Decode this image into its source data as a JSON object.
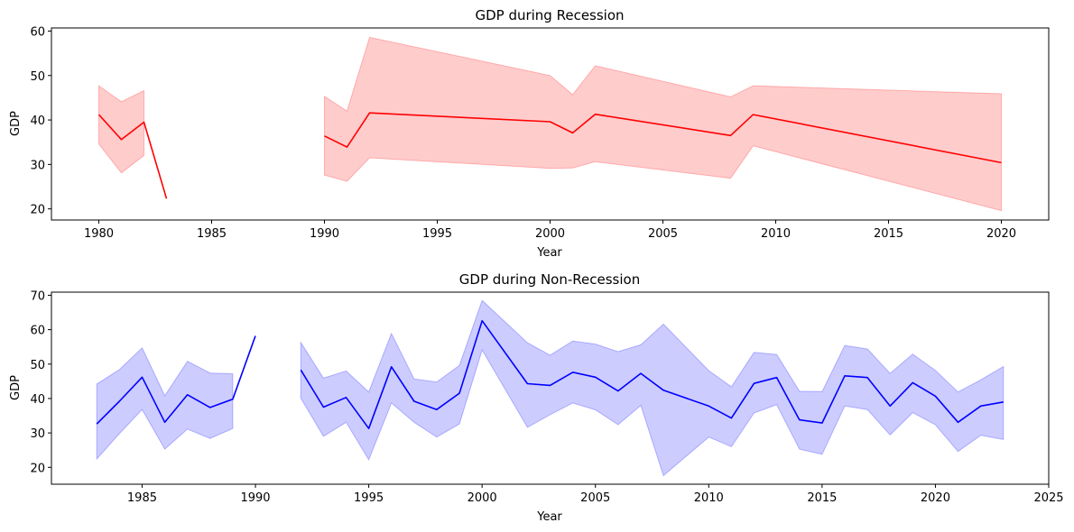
{
  "chart_data": [
    {
      "type": "line",
      "title": "GDP during Recession",
      "xlabel": "Year",
      "ylabel": "GDP",
      "xlim": [
        1977.9,
        2022.1
      ],
      "ylim": [
        17.5,
        60.7
      ],
      "xticks": [
        1980,
        1985,
        1990,
        1995,
        2000,
        2005,
        2010,
        2015,
        2020
      ],
      "yticks": [
        20,
        30,
        40,
        50,
        60
      ],
      "grid": false,
      "colors": {
        "line": "#ff0000",
        "band": "#ff0000",
        "band_opacity": 0.2
      },
      "segments": [
        [
          {
            "x": 1980,
            "y": 41.2,
            "lo": 34.6,
            "hi": 47.7
          },
          {
            "x": 1981,
            "y": 35.6,
            "lo": 28.1,
            "hi": 44.1
          },
          {
            "x": 1982,
            "y": 39.5,
            "lo": 32.0,
            "hi": 46.6
          },
          {
            "x": 1983,
            "y": 22.3,
            "lo": null,
            "hi": null
          }
        ],
        [
          {
            "x": 1990,
            "y": 36.4,
            "lo": 27.6,
            "hi": 45.3
          },
          {
            "x": 1991,
            "y": 33.9,
            "lo": 26.2,
            "hi": 42.0
          },
          {
            "x": 1992,
            "y": 41.6,
            "lo": 31.5,
            "hi": 58.6
          },
          {
            "x": 2000,
            "y": 39.6,
            "lo": 29.1,
            "hi": 50.0
          },
          {
            "x": 2001,
            "y": 37.1,
            "lo": 29.2,
            "hi": 45.7
          },
          {
            "x": 2002,
            "y": 41.3,
            "lo": 30.6,
            "hi": 52.2
          },
          {
            "x": 2008,
            "y": 36.5,
            "lo": 26.9,
            "hi": 45.2
          },
          {
            "x": 2009,
            "y": 41.2,
            "lo": 34.2,
            "hi": 47.7
          },
          {
            "x": 2020,
            "y": 30.4,
            "lo": 19.6,
            "hi": 45.9
          }
        ]
      ]
    },
    {
      "type": "line",
      "title": "GDP during Non-Recession",
      "xlabel": "Year",
      "ylabel": "GDP",
      "xlim": [
        1981.0,
        2025.0
      ],
      "ylim": [
        15.1,
        70.9
      ],
      "xticks": [
        1985,
        1990,
        1995,
        2000,
        2005,
        2010,
        2015,
        2020,
        2025
      ],
      "yticks": [
        20,
        30,
        40,
        50,
        60,
        70
      ],
      "grid": false,
      "colors": {
        "line": "#0000ff",
        "band": "#0000ff",
        "band_opacity": 0.2
      },
      "segments": [
        [
          {
            "x": 1983,
            "y": 32.6,
            "lo": 22.4,
            "hi": 44.2
          },
          {
            "x": 1984,
            "y": 39.2,
            "lo": 29.8,
            "hi": 48.4
          },
          {
            "x": 1985,
            "y": 46.2,
            "lo": 36.8,
            "hi": 54.7
          },
          {
            "x": 1986,
            "y": 33.1,
            "lo": 25.3,
            "hi": 40.8
          },
          {
            "x": 1987,
            "y": 41.1,
            "lo": 31.1,
            "hi": 50.8
          },
          {
            "x": 1988,
            "y": 37.4,
            "lo": 28.4,
            "hi": 47.4
          },
          {
            "x": 1989,
            "y": 39.8,
            "lo": 31.3,
            "hi": 47.2
          },
          {
            "x": 1990,
            "y": 58.2,
            "lo": null,
            "hi": null
          }
        ],
        [
          {
            "x": 1992,
            "y": 48.3,
            "lo": 40.1,
            "hi": 56.3
          },
          {
            "x": 1993,
            "y": 37.5,
            "lo": 29.0,
            "hi": 45.9
          },
          {
            "x": 1994,
            "y": 40.3,
            "lo": 33.1,
            "hi": 48.0
          },
          {
            "x": 1995,
            "y": 31.3,
            "lo": 22.2,
            "hi": 41.9
          },
          {
            "x": 1996,
            "y": 49.2,
            "lo": 38.7,
            "hi": 58.9
          },
          {
            "x": 1997,
            "y": 39.2,
            "lo": 33.1,
            "hi": 45.7
          },
          {
            "x": 1998,
            "y": 36.8,
            "lo": 28.8,
            "hi": 44.8
          },
          {
            "x": 1999,
            "y": 41.5,
            "lo": 32.6,
            "hi": 49.6
          },
          {
            "x": 2000,
            "y": 62.6,
            "lo": 54.1,
            "hi": 68.5
          },
          {
            "x": 2002,
            "y": 44.3,
            "lo": 31.6,
            "hi": 56.2
          },
          {
            "x": 2003,
            "y": 43.8,
            "lo": 35.3,
            "hi": 52.6
          },
          {
            "x": 2004,
            "y": 47.6,
            "lo": 38.7,
            "hi": 56.7
          },
          {
            "x": 2005,
            "y": 46.2,
            "lo": 36.7,
            "hi": 55.8
          },
          {
            "x": 2006,
            "y": 42.2,
            "lo": 32.4,
            "hi": 53.6
          },
          {
            "x": 2007,
            "y": 47.3,
            "lo": 38.0,
            "hi": 55.6
          },
          {
            "x": 2008,
            "y": 42.4,
            "lo": 17.6,
            "hi": 61.6
          },
          {
            "x": 2010,
            "y": 37.8,
            "lo": 28.8,
            "hi": 48.1
          },
          {
            "x": 2011,
            "y": 34.3,
            "lo": 26.0,
            "hi": 43.4
          },
          {
            "x": 2012,
            "y": 44.4,
            "lo": 35.8,
            "hi": 53.4
          },
          {
            "x": 2013,
            "y": 46.1,
            "lo": 38.2,
            "hi": 52.8
          },
          {
            "x": 2014,
            "y": 33.8,
            "lo": 25.3,
            "hi": 42.1
          },
          {
            "x": 2015,
            "y": 32.9,
            "lo": 23.8,
            "hi": 42.0
          },
          {
            "x": 2016,
            "y": 46.6,
            "lo": 37.8,
            "hi": 55.4
          },
          {
            "x": 2017,
            "y": 46.1,
            "lo": 36.8,
            "hi": 54.4
          },
          {
            "x": 2018,
            "y": 37.8,
            "lo": 29.4,
            "hi": 47.3
          },
          {
            "x": 2019,
            "y": 44.6,
            "lo": 35.9,
            "hi": 52.9
          },
          {
            "x": 2020,
            "y": 40.7,
            "lo": 32.4,
            "hi": 48.2
          },
          {
            "x": 2021,
            "y": 33.1,
            "lo": 24.6,
            "hi": 41.9
          },
          {
            "x": 2022,
            "y": 37.8,
            "lo": 29.3,
            "hi": 45.4
          },
          {
            "x": 2023,
            "y": 39.0,
            "lo": 28.1,
            "hi": 49.3
          }
        ]
      ]
    }
  ]
}
